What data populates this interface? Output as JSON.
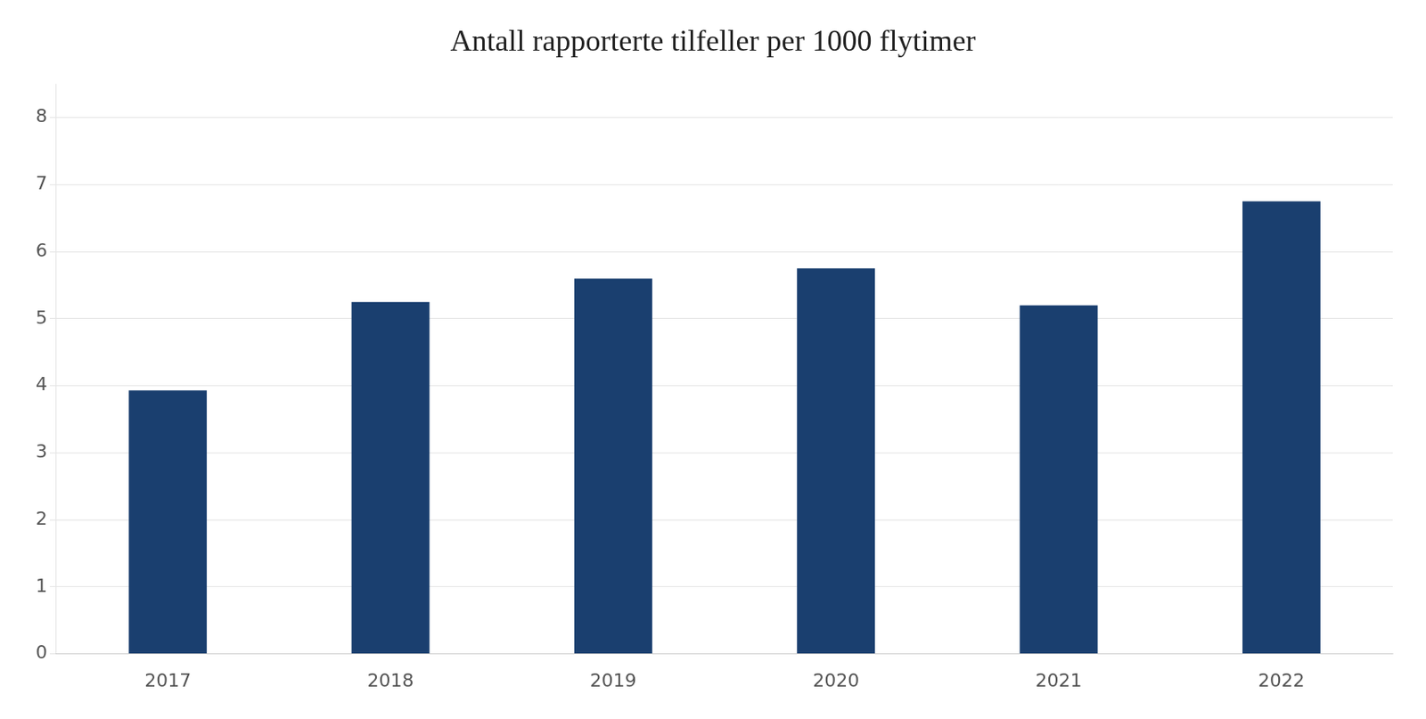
{
  "chart_data": {
    "type": "bar",
    "title": "Antall rapporterte tilfeller per 1000 flytimer",
    "categories": [
      "2017",
      "2018",
      "2019",
      "2020",
      "2021",
      "2022"
    ],
    "values": [
      3.93,
      5.25,
      5.6,
      5.75,
      5.2,
      6.75
    ],
    "color": "#1a3f6f",
    "ylim": [
      0,
      8.5
    ],
    "yticks": [
      0,
      1,
      2,
      3,
      4,
      5,
      6,
      7,
      8
    ],
    "grid": true
  }
}
